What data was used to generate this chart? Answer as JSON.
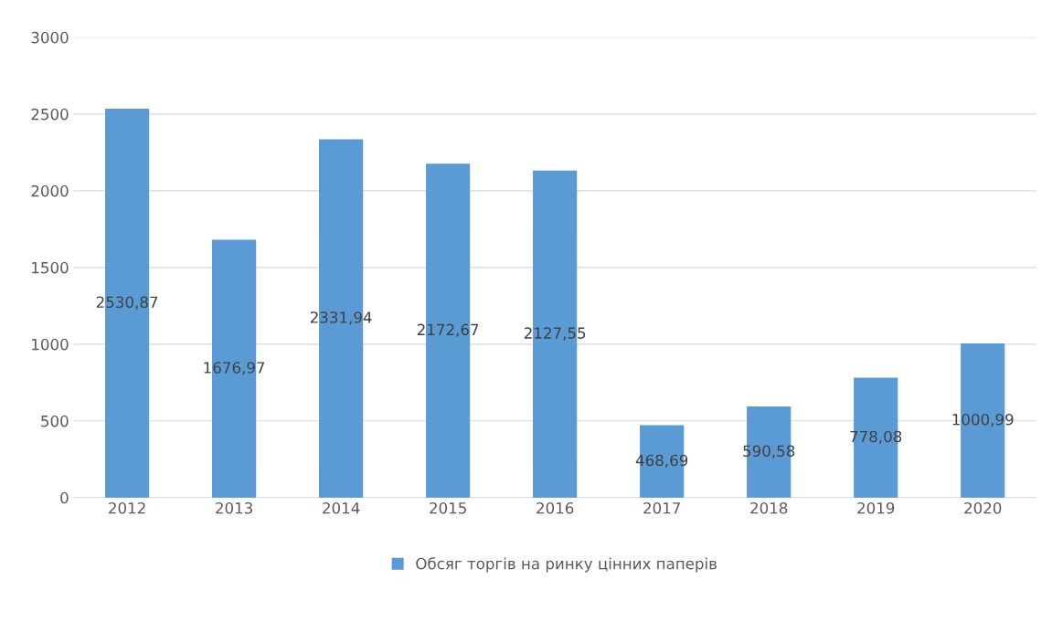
{
  "chart_data": {
    "type": "bar",
    "categories": [
      "2012",
      "2013",
      "2014",
      "2015",
      "2016",
      "2017",
      "2018",
      "2019",
      "2020"
    ],
    "series": [
      {
        "name": "Обсяг торгів на ринку цінних паперів",
        "color": "#5b9bd5",
        "values": [
          2530.87,
          1676.97,
          2331.94,
          2172.67,
          2127.55,
          468.69,
          590.58,
          778.08,
          1000.99
        ],
        "value_labels": [
          "2530,87",
          "1676,97",
          "2331,94",
          "2172,67",
          "2127,55",
          "468,69",
          "590,58",
          "778,08",
          "1000,99"
        ]
      }
    ],
    "ylim": [
      0,
      3000
    ],
    "yticks": [
      0,
      500,
      1000,
      1500,
      2000,
      2500,
      3000
    ],
    "grid": "y",
    "legend": "bottom"
  }
}
